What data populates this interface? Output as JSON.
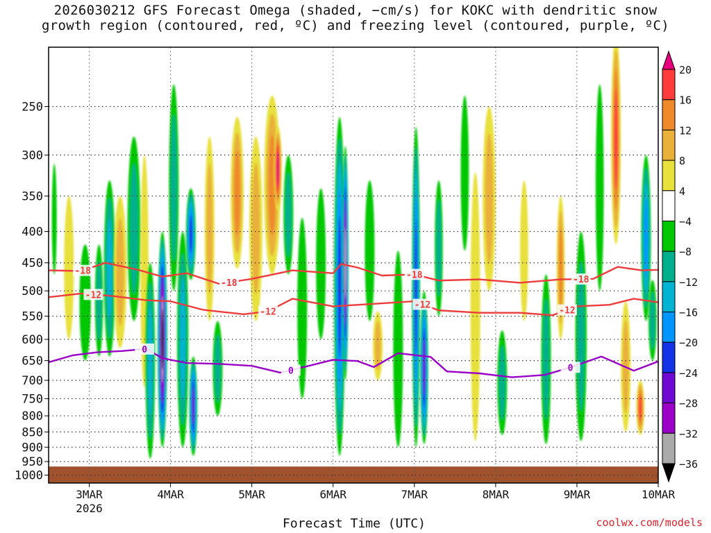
{
  "title_line1": "2026030212 GFS Forecast Omega (shaded, −cm/s) for KOKC with dendritic snow",
  "title_line2": "growth region (contoured, red, ºC) and freezing level (contoured, purple, ºC)",
  "credit": "coolwx.com/models",
  "colors": {
    "ground": "#a0522d",
    "dgz_contour": "#ee3b3b",
    "freezing_contour": "#9a00c8",
    "grid": "#333333"
  },
  "chart_data": {
    "type": "heatmap",
    "title": "2026030212 GFS Forecast Omega (shaded, −cm/s) for KOKC with dendritic snow growth region (contoured, red, ºC) and freezing level (contoured, purple, ºC)",
    "xlabel": "Forecast Time (UTC)",
    "ylabel": "",
    "y_scale": "log-pressure (hPa), inverted",
    "ylim": [
      1030,
      200
    ],
    "y_ticks": [
      "250",
      "300",
      "350",
      "400",
      "450",
      "500",
      "550",
      "600",
      "650",
      "700",
      "750",
      "800",
      "850",
      "900",
      "950",
      "1000"
    ],
    "x_ticks": [
      "3MAR",
      "4MAR",
      "5MAR",
      "6MAR",
      "7MAR",
      "8MAR",
      "9MAR",
      "10MAR"
    ],
    "x_tick_sublabel": "2026",
    "xlim_days": [
      2.5,
      10.0
    ],
    "grid": true,
    "colorbar": {
      "labels": [
        "20",
        "16",
        "12",
        "8",
        "4",
        "−4",
        "−8",
        "−12",
        "−16",
        "−20",
        "−24",
        "−28",
        "−32",
        "−36"
      ],
      "bins": [
        {
          "range": [
            20,
            99
          ],
          "color": "#e6007e"
        },
        {
          "range": [
            16,
            20
          ],
          "color": "#ff3c3c"
        },
        {
          "range": [
            12,
            16
          ],
          "color": "#ee8a2a"
        },
        {
          "range": [
            8,
            12
          ],
          "color": "#e9b03a"
        },
        {
          "range": [
            4,
            8
          ],
          "color": "#e8e03c"
        },
        {
          "range": [
            -4,
            4
          ],
          "color": "#ffffff"
        },
        {
          "range": [
            -8,
            -4
          ],
          "color": "#00c800"
        },
        {
          "range": [
            -12,
            -8
          ],
          "color": "#00b08c"
        },
        {
          "range": [
            -16,
            -12
          ],
          "color": "#00b4d2"
        },
        {
          "range": [
            -20,
            -16
          ],
          "color": "#0096ff"
        },
        {
          "range": [
            -24,
            -20
          ],
          "color": "#1432e6"
        },
        {
          "range": [
            -28,
            -24
          ],
          "color": "#6e0ad2"
        },
        {
          "range": [
            -32,
            -28
          ],
          "color": "#9b00c8"
        },
        {
          "range": [
            -36,
            -32
          ],
          "color": "#aaaaaa"
        },
        {
          "range": [
            -99,
            -36
          ],
          "color": "#000000"
        }
      ]
    },
    "omega_features": [
      {
        "day": 2.57,
        "p_top": 310,
        "p_bot": 470,
        "width": 0.03,
        "peak": -6
      },
      {
        "day": 2.75,
        "p_top": 350,
        "p_bot": 600,
        "width": 0.06,
        "peak": 6
      },
      {
        "day": 2.95,
        "p_top": 420,
        "p_bot": 650,
        "width": 0.07,
        "peak": -6
      },
      {
        "day": 3.12,
        "p_top": 420,
        "p_bot": 640,
        "width": 0.05,
        "peak": -8
      },
      {
        "day": 3.25,
        "p_top": 330,
        "p_bot": 640,
        "width": 0.07,
        "peak": -12
      },
      {
        "day": 3.38,
        "p_top": 350,
        "p_bot": 620,
        "width": 0.08,
        "peak": 9
      },
      {
        "day": 3.55,
        "p_top": 280,
        "p_bot": 560,
        "width": 0.08,
        "peak": -10
      },
      {
        "day": 3.68,
        "p_top": 300,
        "p_bot": 720,
        "width": 0.05,
        "peak": 7
      },
      {
        "day": 3.75,
        "p_top": 450,
        "p_bot": 940,
        "width": 0.06,
        "peak": -12
      },
      {
        "day": 3.9,
        "p_top": 400,
        "p_bot": 900,
        "width": 0.06,
        "peak": -38
      },
      {
        "day": 4.04,
        "p_top": 230,
        "p_bot": 500,
        "width": 0.06,
        "peak": -10
      },
      {
        "day": 4.15,
        "p_top": 400,
        "p_bot": 900,
        "width": 0.07,
        "peak": -14
      },
      {
        "day": 4.25,
        "p_top": 340,
        "p_bot": 480,
        "width": 0.06,
        "peak": -22
      },
      {
        "day": 4.28,
        "p_top": 640,
        "p_bot": 930,
        "width": 0.05,
        "peak": -24
      },
      {
        "day": 4.48,
        "p_top": 280,
        "p_bot": 560,
        "width": 0.06,
        "peak": 8
      },
      {
        "day": 4.58,
        "p_top": 560,
        "p_bot": 800,
        "width": 0.06,
        "peak": -8
      },
      {
        "day": 4.82,
        "p_top": 260,
        "p_bot": 460,
        "width": 0.08,
        "peak": 12
      },
      {
        "day": 5.05,
        "p_top": 280,
        "p_bot": 560,
        "width": 0.08,
        "peak": 9
      },
      {
        "day": 5.25,
        "p_top": 240,
        "p_bot": 470,
        "width": 0.1,
        "peak": 13
      },
      {
        "day": 5.32,
        "p_top": 270,
        "p_bot": 370,
        "width": 0.05,
        "peak": 20
      },
      {
        "day": 5.45,
        "p_top": 300,
        "p_bot": 470,
        "width": 0.06,
        "peak": -8
      },
      {
        "day": 5.62,
        "p_top": 380,
        "p_bot": 750,
        "width": 0.06,
        "peak": -7
      },
      {
        "day": 5.85,
        "p_top": 340,
        "p_bot": 600,
        "width": 0.06,
        "peak": -7
      },
      {
        "day": 6.08,
        "p_top": 260,
        "p_bot": 930,
        "width": 0.07,
        "peak": -22
      },
      {
        "day": 6.15,
        "p_top": 290,
        "p_bot": 700,
        "width": 0.04,
        "peak": -32
      },
      {
        "day": 6.45,
        "p_top": 330,
        "p_bot": 560,
        "width": 0.06,
        "peak": -7
      },
      {
        "day": 6.55,
        "p_top": 540,
        "p_bot": 700,
        "width": 0.06,
        "peak": 8
      },
      {
        "day": 6.8,
        "p_top": 430,
        "p_bot": 900,
        "width": 0.06,
        "peak": -7
      },
      {
        "day": 7.02,
        "p_top": 270,
        "p_bot": 900,
        "width": 0.05,
        "peak": -20
      },
      {
        "day": 7.12,
        "p_top": 500,
        "p_bot": 890,
        "width": 0.05,
        "peak": -24
      },
      {
        "day": 7.3,
        "p_top": 330,
        "p_bot": 550,
        "width": 0.05,
        "peak": -8
      },
      {
        "day": 7.62,
        "p_top": 240,
        "p_bot": 430,
        "width": 0.05,
        "peak": -7
      },
      {
        "day": 7.75,
        "p_top": 320,
        "p_bot": 880,
        "width": 0.06,
        "peak": 7
      },
      {
        "day": 7.92,
        "p_top": 250,
        "p_bot": 500,
        "width": 0.08,
        "peak": 10
      },
      {
        "day": 8.08,
        "p_top": 580,
        "p_bot": 860,
        "width": 0.06,
        "peak": -8
      },
      {
        "day": 8.35,
        "p_top": 330,
        "p_bot": 560,
        "width": 0.05,
        "peak": 6
      },
      {
        "day": 8.62,
        "p_top": 470,
        "p_bot": 890,
        "width": 0.06,
        "peak": -10
      },
      {
        "day": 8.8,
        "p_top": 350,
        "p_bot": 600,
        "width": 0.05,
        "peak": 12
      },
      {
        "day": 9.05,
        "p_top": 400,
        "p_bot": 880,
        "width": 0.07,
        "peak": -9
      },
      {
        "day": 9.28,
        "p_top": 230,
        "p_bot": 500,
        "width": 0.05,
        "peak": -7
      },
      {
        "day": 9.48,
        "p_top": 190,
        "p_bot": 420,
        "width": 0.06,
        "peak": 18
      },
      {
        "day": 9.6,
        "p_top": 520,
        "p_bot": 850,
        "width": 0.06,
        "peak": 9
      },
      {
        "day": 9.78,
        "p_top": 700,
        "p_bot": 860,
        "width": 0.05,
        "peak": 16
      },
      {
        "day": 9.85,
        "p_top": 300,
        "p_bot": 560,
        "width": 0.06,
        "peak": -18
      },
      {
        "day": 9.93,
        "p_top": 480,
        "p_bot": 650,
        "width": 0.05,
        "peak": -9
      }
    ],
    "contours": [
      {
        "label": "-18",
        "color": "dgz",
        "labels_at": [
          2.92,
          4.72,
          7.0,
          9.05
        ],
        "points": [
          [
            2.5,
            463
          ],
          [
            2.9,
            464
          ],
          [
            3.2,
            450
          ],
          [
            3.6,
            462
          ],
          [
            3.9,
            474
          ],
          [
            4.2,
            468
          ],
          [
            4.6,
            487
          ],
          [
            5.0,
            478
          ],
          [
            5.5,
            463
          ],
          [
            6.0,
            468
          ],
          [
            6.1,
            452
          ],
          [
            6.3,
            458
          ],
          [
            6.6,
            472
          ],
          [
            7.0,
            470
          ],
          [
            7.3,
            481
          ],
          [
            7.8,
            479
          ],
          [
            8.3,
            485
          ],
          [
            8.8,
            479
          ],
          [
            9.2,
            478
          ],
          [
            9.5,
            457
          ],
          [
            9.8,
            463
          ],
          [
            10.0,
            462
          ]
        ]
      },
      {
        "label": "-12",
        "color": "dgz",
        "labels_at": [
          3.05,
          5.2,
          7.1,
          8.88
        ],
        "points": [
          [
            2.5,
            512
          ],
          [
            2.9,
            505
          ],
          [
            3.3,
            510
          ],
          [
            3.7,
            518
          ],
          [
            4.0,
            520
          ],
          [
            4.4,
            537
          ],
          [
            4.9,
            546
          ],
          [
            5.2,
            540
          ],
          [
            5.5,
            515
          ],
          [
            6.0,
            530
          ],
          [
            6.5,
            525
          ],
          [
            7.0,
            520
          ],
          [
            7.3,
            538
          ],
          [
            7.8,
            543
          ],
          [
            8.3,
            543
          ],
          [
            8.7,
            548
          ],
          [
            9.0,
            530
          ],
          [
            9.4,
            527
          ],
          [
            9.7,
            515
          ],
          [
            10.0,
            522
          ]
        ]
      },
      {
        "label": "0",
        "color": "freezing",
        "labels_at": [
          3.68,
          5.48,
          8.92
        ],
        "points": [
          [
            2.5,
            654
          ],
          [
            2.8,
            637
          ],
          [
            3.1,
            630
          ],
          [
            3.4,
            627
          ],
          [
            3.7,
            622
          ],
          [
            3.9,
            644
          ],
          [
            4.2,
            656
          ],
          [
            4.6,
            658
          ],
          [
            5.0,
            663
          ],
          [
            5.35,
            680
          ],
          [
            5.7,
            663
          ],
          [
            6.0,
            648
          ],
          [
            6.3,
            651
          ],
          [
            6.5,
            666
          ],
          [
            6.8,
            632
          ],
          [
            7.2,
            641
          ],
          [
            7.4,
            677
          ],
          [
            7.8,
            682
          ],
          [
            8.2,
            692
          ],
          [
            8.6,
            686
          ],
          [
            8.9,
            668
          ],
          [
            9.3,
            640
          ],
          [
            9.7,
            675
          ],
          [
            10.0,
            652
          ]
        ]
      }
    ]
  }
}
